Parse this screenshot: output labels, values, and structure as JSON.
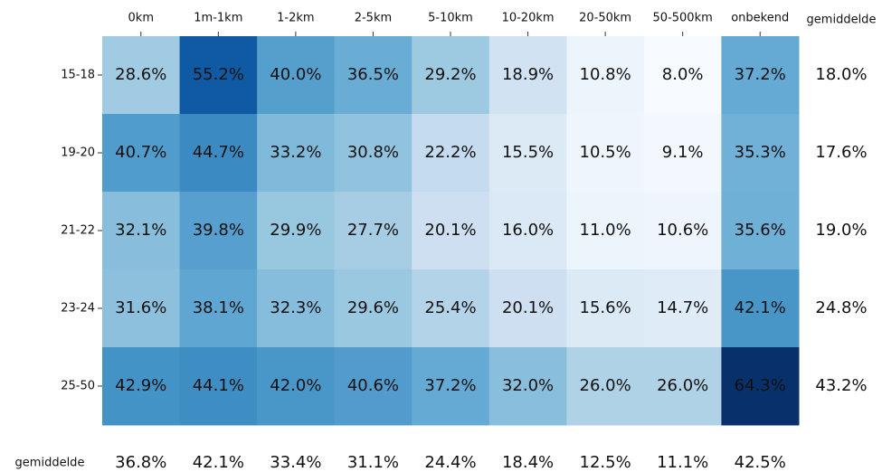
{
  "chart_data": {
    "type": "heatmap",
    "x_categories": [
      "0km",
      "1m-1km",
      "1-2km",
      "2-5km",
      "5-10km",
      "10-20km",
      "20-50km",
      "50-500km",
      "onbekend"
    ],
    "y_categories": [
      "15-18",
      "19-20",
      "21-22",
      "23-24",
      "25-50"
    ],
    "values": [
      [
        28.6,
        55.2,
        40.0,
        36.5,
        29.2,
        18.9,
        10.8,
        8.0,
        37.2
      ],
      [
        40.7,
        44.7,
        33.2,
        30.8,
        22.2,
        15.5,
        10.5,
        9.1,
        35.3
      ],
      [
        32.1,
        39.8,
        29.9,
        27.7,
        20.1,
        16.0,
        11.0,
        10.6,
        35.6
      ],
      [
        31.6,
        38.1,
        32.3,
        29.6,
        25.4,
        20.1,
        15.6,
        14.7,
        42.1
      ],
      [
        42.9,
        44.1,
        42.0,
        40.6,
        37.2,
        32.0,
        26.0,
        26.0,
        64.3
      ]
    ],
    "value_labels": [
      [
        "28.6%",
        "55.2%",
        "40.0%",
        "36.5%",
        "29.2%",
        "18.9%",
        "10.8%",
        "8.0%",
        "37.2%"
      ],
      [
        "40.7%",
        "44.7%",
        "33.2%",
        "30.8%",
        "22.2%",
        "15.5%",
        "10.5%",
        "9.1%",
        "35.3%"
      ],
      [
        "32.1%",
        "39.8%",
        "29.9%",
        "27.7%",
        "20.1%",
        "16.0%",
        "11.0%",
        "10.6%",
        "35.6%"
      ],
      [
        "31.6%",
        "38.1%",
        "32.3%",
        "29.6%",
        "25.4%",
        "20.1%",
        "15.6%",
        "14.7%",
        "42.1%"
      ],
      [
        "42.9%",
        "44.1%",
        "42.0%",
        "40.6%",
        "37.2%",
        "32.0%",
        "26.0%",
        "26.0%",
        "64.3%"
      ]
    ],
    "row_average_title": "gemiddelde",
    "row_averages": [
      18.0,
      17.6,
      19.0,
      24.8,
      43.2
    ],
    "row_average_labels": [
      "18.0%",
      "17.6%",
      "19.0%",
      "24.8%",
      "43.2%"
    ],
    "column_average_title": "gemiddelde",
    "column_averages": [
      36.8,
      42.1,
      33.4,
      31.1,
      24.4,
      18.4,
      12.5,
      11.1,
      42.5
    ],
    "column_average_labels": [
      "36.8%",
      "42.1%",
      "33.4%",
      "31.1%",
      "24.4%",
      "18.4%",
      "12.5%",
      "11.1%",
      "42.5%"
    ],
    "colormap": [
      "#f7fbff",
      "#deebf7",
      "#c6dbef",
      "#9ecae1",
      "#6baed6",
      "#4292c6",
      "#2171b5",
      "#08519c",
      "#08306b"
    ]
  }
}
